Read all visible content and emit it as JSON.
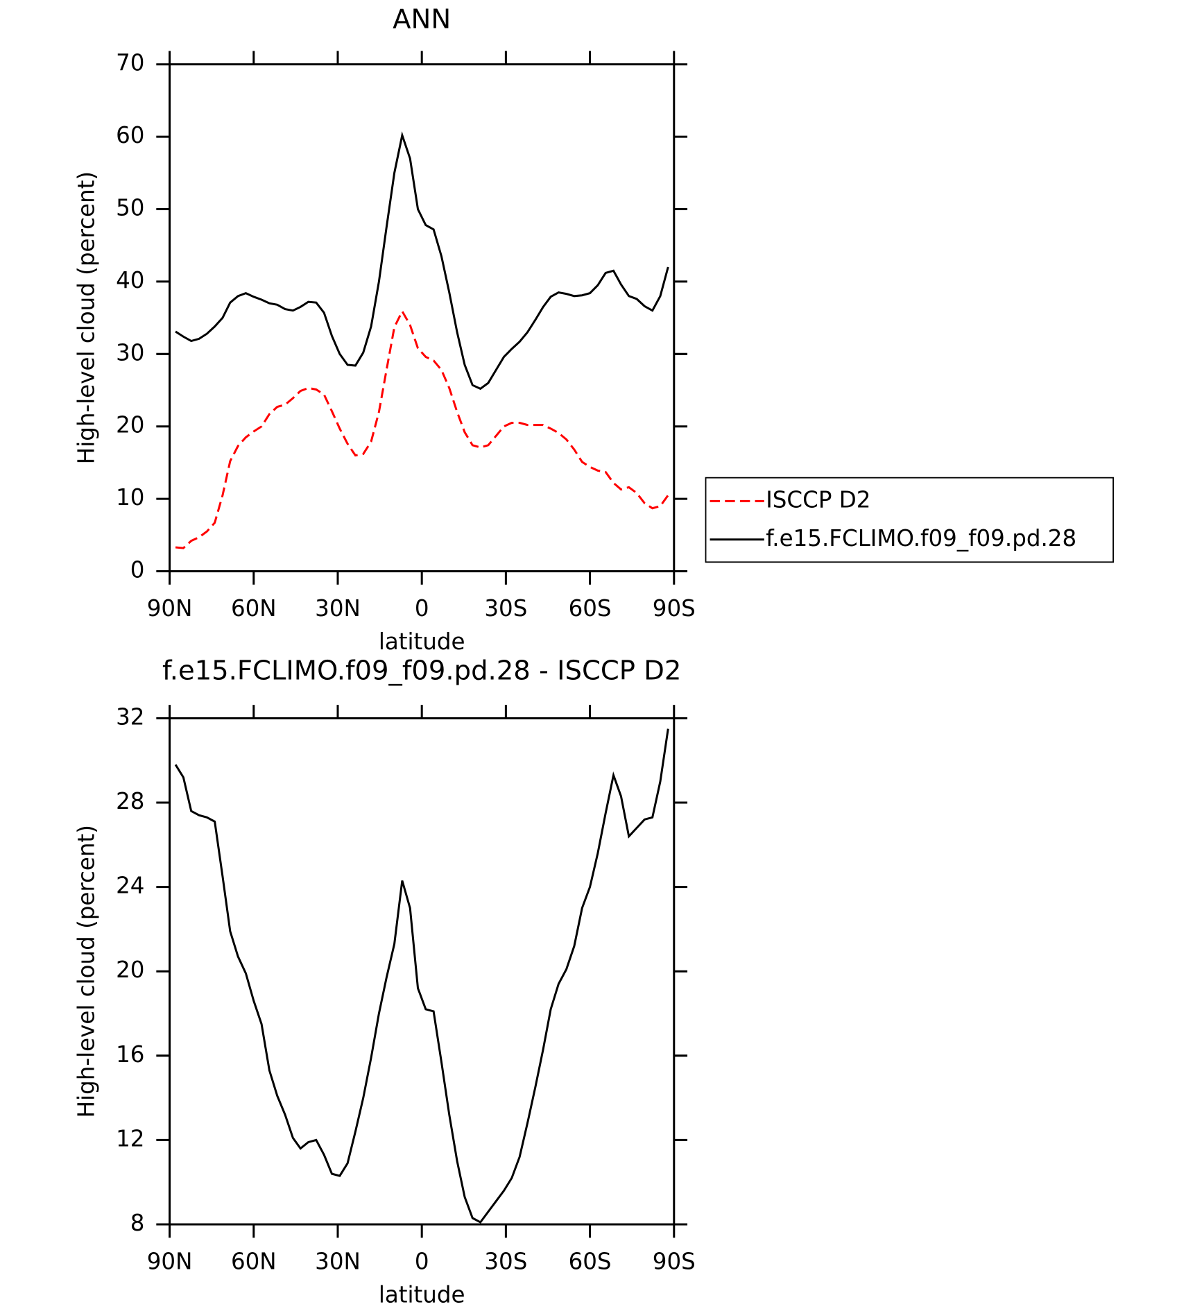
{
  "chart_data": [
    {
      "type": "line",
      "title": "ANN",
      "xlabel": "latitude",
      "ylabel": "High-level cloud (percent)",
      "x": [
        87.9,
        85.1,
        82.3,
        79.5,
        76.7,
        73.9,
        71.1,
        68.4,
        65.6,
        62.8,
        60.0,
        57.2,
        54.4,
        51.6,
        48.8,
        46.0,
        43.3,
        40.5,
        37.7,
        34.9,
        32.1,
        29.3,
        26.5,
        23.7,
        20.9,
        18.1,
        15.3,
        12.6,
        9.8,
        7.0,
        4.2,
        1.4,
        -1.4,
        -4.2,
        -7.0,
        -9.8,
        -12.6,
        -15.3,
        -18.1,
        -20.9,
        -23.7,
        -26.5,
        -29.3,
        -32.1,
        -34.9,
        -37.7,
        -40.5,
        -43.3,
        -46.0,
        -48.8,
        -51.6,
        -54.4,
        -57.2,
        -60.0,
        -62.8,
        -65.6,
        -68.4,
        -71.1,
        -73.9,
        -76.7,
        -79.5,
        -82.3,
        -85.1,
        -87.9
      ],
      "xlim": [
        90,
        -90
      ],
      "xticks": [
        {
          "value": 90,
          "label": "90N"
        },
        {
          "value": 60,
          "label": "60N"
        },
        {
          "value": 30,
          "label": "30N"
        },
        0,
        {
          "value": -30,
          "label": "30S"
        },
        {
          "value": -60,
          "label": "60S"
        },
        {
          "value": -90,
          "label": "90S"
        }
      ],
      "ylim": [
        0,
        70
      ],
      "yticks": [
        0,
        10,
        20,
        30,
        40,
        50,
        60,
        70
      ],
      "legend": "right",
      "series": [
        {
          "name": "ISCCP D2",
          "color": "#ff0000",
          "linestyle": "dashed",
          "values": [
            3.3,
            3.2,
            4.2,
            4.7,
            5.5,
            6.7,
            10.5,
            15.2,
            17.3,
            18.5,
            19.3,
            20.0,
            21.7,
            22.7,
            23.0,
            23.9,
            24.9,
            25.3,
            25.1,
            24.4,
            22.1,
            19.7,
            17.6,
            16.0,
            16.2,
            17.9,
            22.0,
            27.8,
            33.7,
            35.9,
            34.0,
            30.8,
            29.6,
            29.1,
            27.8,
            25.3,
            22.0,
            19.2,
            17.4,
            17.1,
            17.4,
            18.7,
            20.0,
            20.5,
            20.5,
            20.2,
            20.2,
            20.2,
            19.7,
            19.1,
            18.2,
            16.8,
            15.1,
            14.4,
            13.9,
            13.7,
            12.2,
            11.3,
            11.6,
            10.8,
            9.4,
            8.7,
            9.0,
            10.5
          ]
        },
        {
          "name": "f.e15.FCLIMO.f09_f09.pd.28",
          "color": "#000000",
          "linestyle": "solid",
          "values": [
            33.1,
            32.4,
            31.8,
            32.1,
            32.8,
            33.8,
            35.0,
            37.1,
            38.0,
            38.4,
            37.9,
            37.5,
            37.0,
            36.8,
            36.2,
            36.0,
            36.5,
            37.2,
            37.1,
            35.7,
            32.5,
            30.0,
            28.5,
            28.4,
            30.2,
            33.8,
            40.0,
            47.5,
            55.0,
            60.2,
            57.0,
            50.0,
            47.8,
            47.2,
            43.5,
            38.5,
            33.0,
            28.5,
            25.7,
            25.2,
            26.0,
            27.8,
            29.6,
            30.7,
            31.7,
            33.0,
            34.7,
            36.5,
            37.9,
            38.5,
            38.3,
            38.0,
            38.1,
            38.4,
            39.5,
            41.2,
            41.5,
            39.6,
            38.0,
            37.6,
            36.6,
            36.0,
            38.0,
            42.0
          ]
        }
      ]
    },
    {
      "type": "line",
      "title": "f.e15.FCLIMO.f09_f09.pd.28 - ISCCP D2",
      "xlabel": "latitude",
      "ylabel": "High-level cloud (percent)",
      "x": [
        87.9,
        85.1,
        82.3,
        79.5,
        76.7,
        73.9,
        71.1,
        68.4,
        65.6,
        62.8,
        60.0,
        57.2,
        54.4,
        51.6,
        48.8,
        46.0,
        43.3,
        40.5,
        37.7,
        34.9,
        32.1,
        29.3,
        26.5,
        23.7,
        20.9,
        18.1,
        15.3,
        12.6,
        9.8,
        7.0,
        4.2,
        1.4,
        -1.4,
        -4.2,
        -7.0,
        -9.8,
        -12.6,
        -15.3,
        -18.1,
        -20.9,
        -23.7,
        -26.5,
        -29.3,
        -32.1,
        -34.9,
        -37.7,
        -40.5,
        -43.3,
        -46.0,
        -48.8,
        -51.6,
        -54.4,
        -57.2,
        -60.0,
        -62.8,
        -65.6,
        -68.4,
        -71.1,
        -73.9,
        -76.7,
        -79.5,
        -82.3,
        -85.1,
        -87.9
      ],
      "xlim": [
        90,
        -90
      ],
      "xticks": [
        {
          "value": 90,
          "label": "90N"
        },
        {
          "value": 60,
          "label": "60N"
        },
        {
          "value": 30,
          "label": "30N"
        },
        0,
        {
          "value": -30,
          "label": "30S"
        },
        {
          "value": -60,
          "label": "60S"
        },
        {
          "value": -90,
          "label": "90S"
        }
      ],
      "ylim": [
        8,
        32
      ],
      "yticks": [
        8,
        12,
        16,
        20,
        24,
        28,
        32
      ],
      "series": [
        {
          "color": "#000000",
          "linestyle": "solid",
          "values": [
            29.8,
            29.2,
            27.6,
            27.4,
            27.3,
            27.1,
            24.5,
            21.9,
            20.7,
            19.9,
            18.6,
            17.5,
            15.3,
            14.1,
            13.2,
            12.1,
            11.6,
            11.9,
            12.0,
            11.3,
            10.4,
            10.3,
            10.9,
            12.4,
            14.0,
            15.9,
            18.0,
            19.7,
            21.3,
            24.3,
            23.0,
            19.2,
            18.2,
            18.1,
            15.7,
            13.2,
            11.0,
            9.3,
            8.3,
            8.1,
            8.6,
            9.1,
            9.6,
            10.2,
            11.2,
            12.8,
            14.5,
            16.3,
            18.2,
            19.4,
            20.1,
            21.2,
            23.0,
            24.0,
            25.6,
            27.5,
            29.3,
            28.3,
            26.4,
            26.8,
            27.2,
            27.3,
            29.0,
            31.5
          ]
        }
      ]
    }
  ]
}
